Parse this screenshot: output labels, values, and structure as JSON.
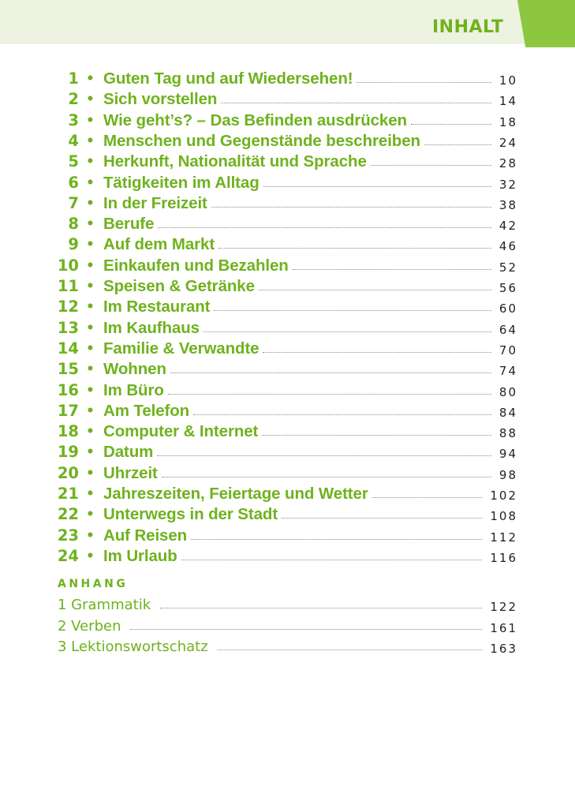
{
  "header": {
    "title": "INHALT"
  },
  "bullet": "•",
  "toc": [
    {
      "num": "1",
      "title": "Guten Tag und auf Wiedersehen!",
      "page": "10"
    },
    {
      "num": "2",
      "title": "Sich vorstellen",
      "page": "14"
    },
    {
      "num": "3",
      "title": "Wie geht’s? – Das Befinden ausdrücken",
      "page": "18"
    },
    {
      "num": "4",
      "title": "Menschen und Gegenstände beschreiben",
      "page": "24"
    },
    {
      "num": "5",
      "title": "Herkunft, Nationalität und Sprache",
      "page": "28"
    },
    {
      "num": "6",
      "title": "Tätigkeiten im Alltag",
      "page": "32"
    },
    {
      "num": "7",
      "title": "In der Freizeit",
      "page": "38"
    },
    {
      "num": "8",
      "title": "Berufe",
      "page": "42"
    },
    {
      "num": "9",
      "title": "Auf dem Markt",
      "page": "46"
    },
    {
      "num": "10",
      "title": "Einkaufen und Bezahlen",
      "page": "52"
    },
    {
      "num": "11",
      "title": "Speisen & Getränke",
      "page": "56"
    },
    {
      "num": "12",
      "title": "Im Restaurant",
      "page": "60"
    },
    {
      "num": "13",
      "title": "Im Kaufhaus",
      "page": "64"
    },
    {
      "num": "14",
      "title": "Familie & Verwandte",
      "page": "70"
    },
    {
      "num": "15",
      "title": "Wohnen",
      "page": "74"
    },
    {
      "num": "16",
      "title": "Im Büro",
      "page": "80"
    },
    {
      "num": "17",
      "title": "Am Telefon",
      "page": "84"
    },
    {
      "num": "18",
      "title": "Computer & Internet",
      "page": "88"
    },
    {
      "num": "19",
      "title": "Datum",
      "page": "94"
    },
    {
      "num": "20",
      "title": "Uhrzeit",
      "page": "98"
    },
    {
      "num": "21",
      "title": "Jahreszeiten, Feiertage und Wetter",
      "page": "102"
    },
    {
      "num": "22",
      "title": "Unterwegs in der Stadt",
      "page": "108"
    },
    {
      "num": "23",
      "title": "Auf Reisen",
      "page": "112"
    },
    {
      "num": "24",
      "title": "Im Urlaub",
      "page": "116"
    }
  ],
  "appendix": {
    "heading": "ANHANG",
    "items": [
      {
        "label": "1 Grammatik",
        "page": "122"
      },
      {
        "label": "2 Verben",
        "page": "161"
      },
      {
        "label": "3 Lektionswortschatz",
        "page": "163"
      }
    ]
  }
}
